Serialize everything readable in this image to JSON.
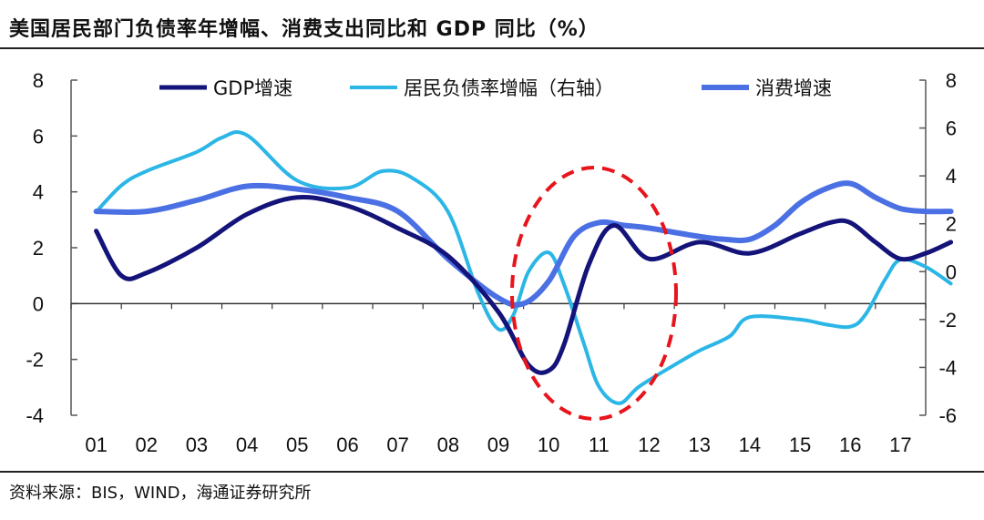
{
  "title": "美国居民部门负债率年增幅、消费支出同比和 GDP 同比（%）",
  "source": "资料来源：BIS，WIND，海通证券研究所",
  "chart_data": {
    "type": "line",
    "categories": [
      "01",
      "02",
      "03",
      "04",
      "05",
      "06",
      "07",
      "08",
      "09",
      "10",
      "11",
      "12",
      "13",
      "14",
      "15",
      "16",
      "17"
    ],
    "left_axis": {
      "ylim": [
        -4,
        8
      ],
      "ticks": [
        -4,
        -2,
        0,
        2,
        4,
        6,
        8
      ]
    },
    "right_axis": {
      "ylim": [
        -6,
        8
      ],
      "ticks": [
        -6,
        -4,
        -2,
        0,
        2,
        4,
        6,
        8
      ]
    },
    "series": [
      {
        "name": "GDP增速",
        "axis": "left",
        "color": "#13137a",
        "x": [
          0.0,
          0.5,
          1.0,
          2.0,
          3.0,
          4.0,
          5.0,
          6.0,
          7.0,
          8.0,
          8.6,
          9.0,
          9.3,
          9.8,
          10.3,
          11.0,
          12.0,
          13.0,
          14.0,
          14.6,
          15.0,
          15.5,
          16.0,
          16.5,
          17.0
        ],
        "values": [
          2.6,
          1.0,
          1.1,
          2.0,
          3.2,
          3.8,
          3.5,
          2.7,
          1.7,
          -0.3,
          -2.2,
          -2.4,
          -1.5,
          1.4,
          2.8,
          1.6,
          2.2,
          1.8,
          2.5,
          2.9,
          2.9,
          2.2,
          1.6,
          1.8,
          2.2
        ],
        "width": 5
      },
      {
        "name": "居民负债率增幅（右轴）",
        "axis": "right",
        "color": "#2bb6e6",
        "x": [
          0.0,
          0.5,
          1.0,
          2.0,
          2.5,
          3.0,
          4.0,
          5.0,
          5.7,
          6.3,
          7.0,
          7.6,
          8.0,
          8.3,
          8.6,
          9.0,
          9.3,
          9.7,
          10.0,
          10.4,
          10.8,
          11.5,
          12.0,
          12.6,
          13.0,
          14.0,
          14.5,
          15.0,
          15.3,
          15.7,
          16.0,
          16.5,
          17.0
        ],
        "values": [
          2.5,
          3.6,
          4.2,
          5.0,
          5.6,
          5.7,
          3.8,
          3.5,
          4.2,
          3.9,
          2.5,
          -0.9,
          -2.4,
          -1.8,
          0.0,
          0.8,
          -0.5,
          -3.0,
          -4.8,
          -5.5,
          -4.8,
          -3.9,
          -3.3,
          -2.7,
          -1.9,
          -2.0,
          -2.2,
          -2.3,
          -1.8,
          -0.3,
          0.5,
          0.2,
          -0.5
        ],
        "width": 4
      },
      {
        "name": "消费增速",
        "axis": "left",
        "color": "#4a70e4",
        "x": [
          0.0,
          1.0,
          2.0,
          3.0,
          4.0,
          5.0,
          6.0,
          7.0,
          8.0,
          8.5,
          9.0,
          9.5,
          10.0,
          10.5,
          11.0,
          12.0,
          12.5,
          13.0,
          13.5,
          14.0,
          14.5,
          15.0,
          15.5,
          16.0,
          16.5,
          17.0
        ],
        "values": [
          3.3,
          3.3,
          3.7,
          4.2,
          4.1,
          3.8,
          3.3,
          1.6,
          0.2,
          0.0,
          0.8,
          2.4,
          2.9,
          2.8,
          2.7,
          2.4,
          2.3,
          2.3,
          2.8,
          3.6,
          4.1,
          4.3,
          3.8,
          3.4,
          3.3,
          3.3
        ],
        "width": 6
      }
    ],
    "legend_position": "top"
  }
}
